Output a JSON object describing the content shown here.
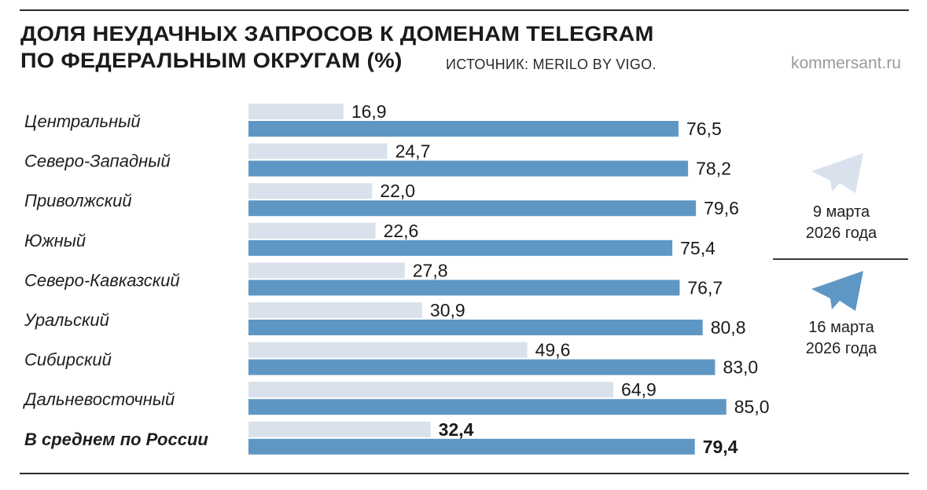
{
  "header": {
    "title_line1": "ДОЛЯ НЕУДАЧНЫХ ЗАПРОСОВ К ДОМЕНАМ TELEGRAM",
    "title_line2": "ПО ФЕДЕРАЛЬНЫМ ОКРУГАМ (%)",
    "source": "ИСТОЧНИК: MERILO BY VIGO.",
    "brand": "kommersant.ru"
  },
  "legend": {
    "items": [
      {
        "line1": "9 марта",
        "line2": "2026 года",
        "color": "#d9e2ec",
        "icon": "telegram-plane-icon"
      },
      {
        "line1": "16 марта",
        "line2": "2026 года",
        "color": "#5f97c4",
        "icon": "telegram-plane-icon"
      }
    ]
  },
  "chart_data": {
    "type": "bar",
    "orientation": "horizontal",
    "categories": [
      "Центральный",
      "Северо-Западный",
      "Приволжский",
      "Южный",
      "Северо-Кавказский",
      "Уральский",
      "Сибирский",
      "Дальневосточный",
      "В среднем по России"
    ],
    "emphasized_category": "В среднем по России",
    "series": [
      {
        "name": "9 марта 2026 года",
        "color": "#d9e2ec",
        "values": [
          16.9,
          24.7,
          22.0,
          22.6,
          27.8,
          30.9,
          49.6,
          64.9,
          32.4
        ],
        "labels": [
          "16,9",
          "24,7",
          "22,0",
          "22,6",
          "27,8",
          "30,9",
          "49,6",
          "64,9",
          "32,4"
        ]
      },
      {
        "name": "16 марта 2026 года",
        "color": "#5f97c4",
        "values": [
          76.5,
          78.2,
          79.6,
          75.4,
          76.7,
          80.8,
          83.0,
          85.0,
          79.4
        ],
        "labels": [
          "76,5",
          "78,2",
          "79,6",
          "75,4",
          "76,7",
          "80,8",
          "83,0",
          "85,0",
          "79,4"
        ]
      }
    ],
    "xlim": [
      0,
      85
    ],
    "grid": false,
    "legend_position": "right"
  }
}
